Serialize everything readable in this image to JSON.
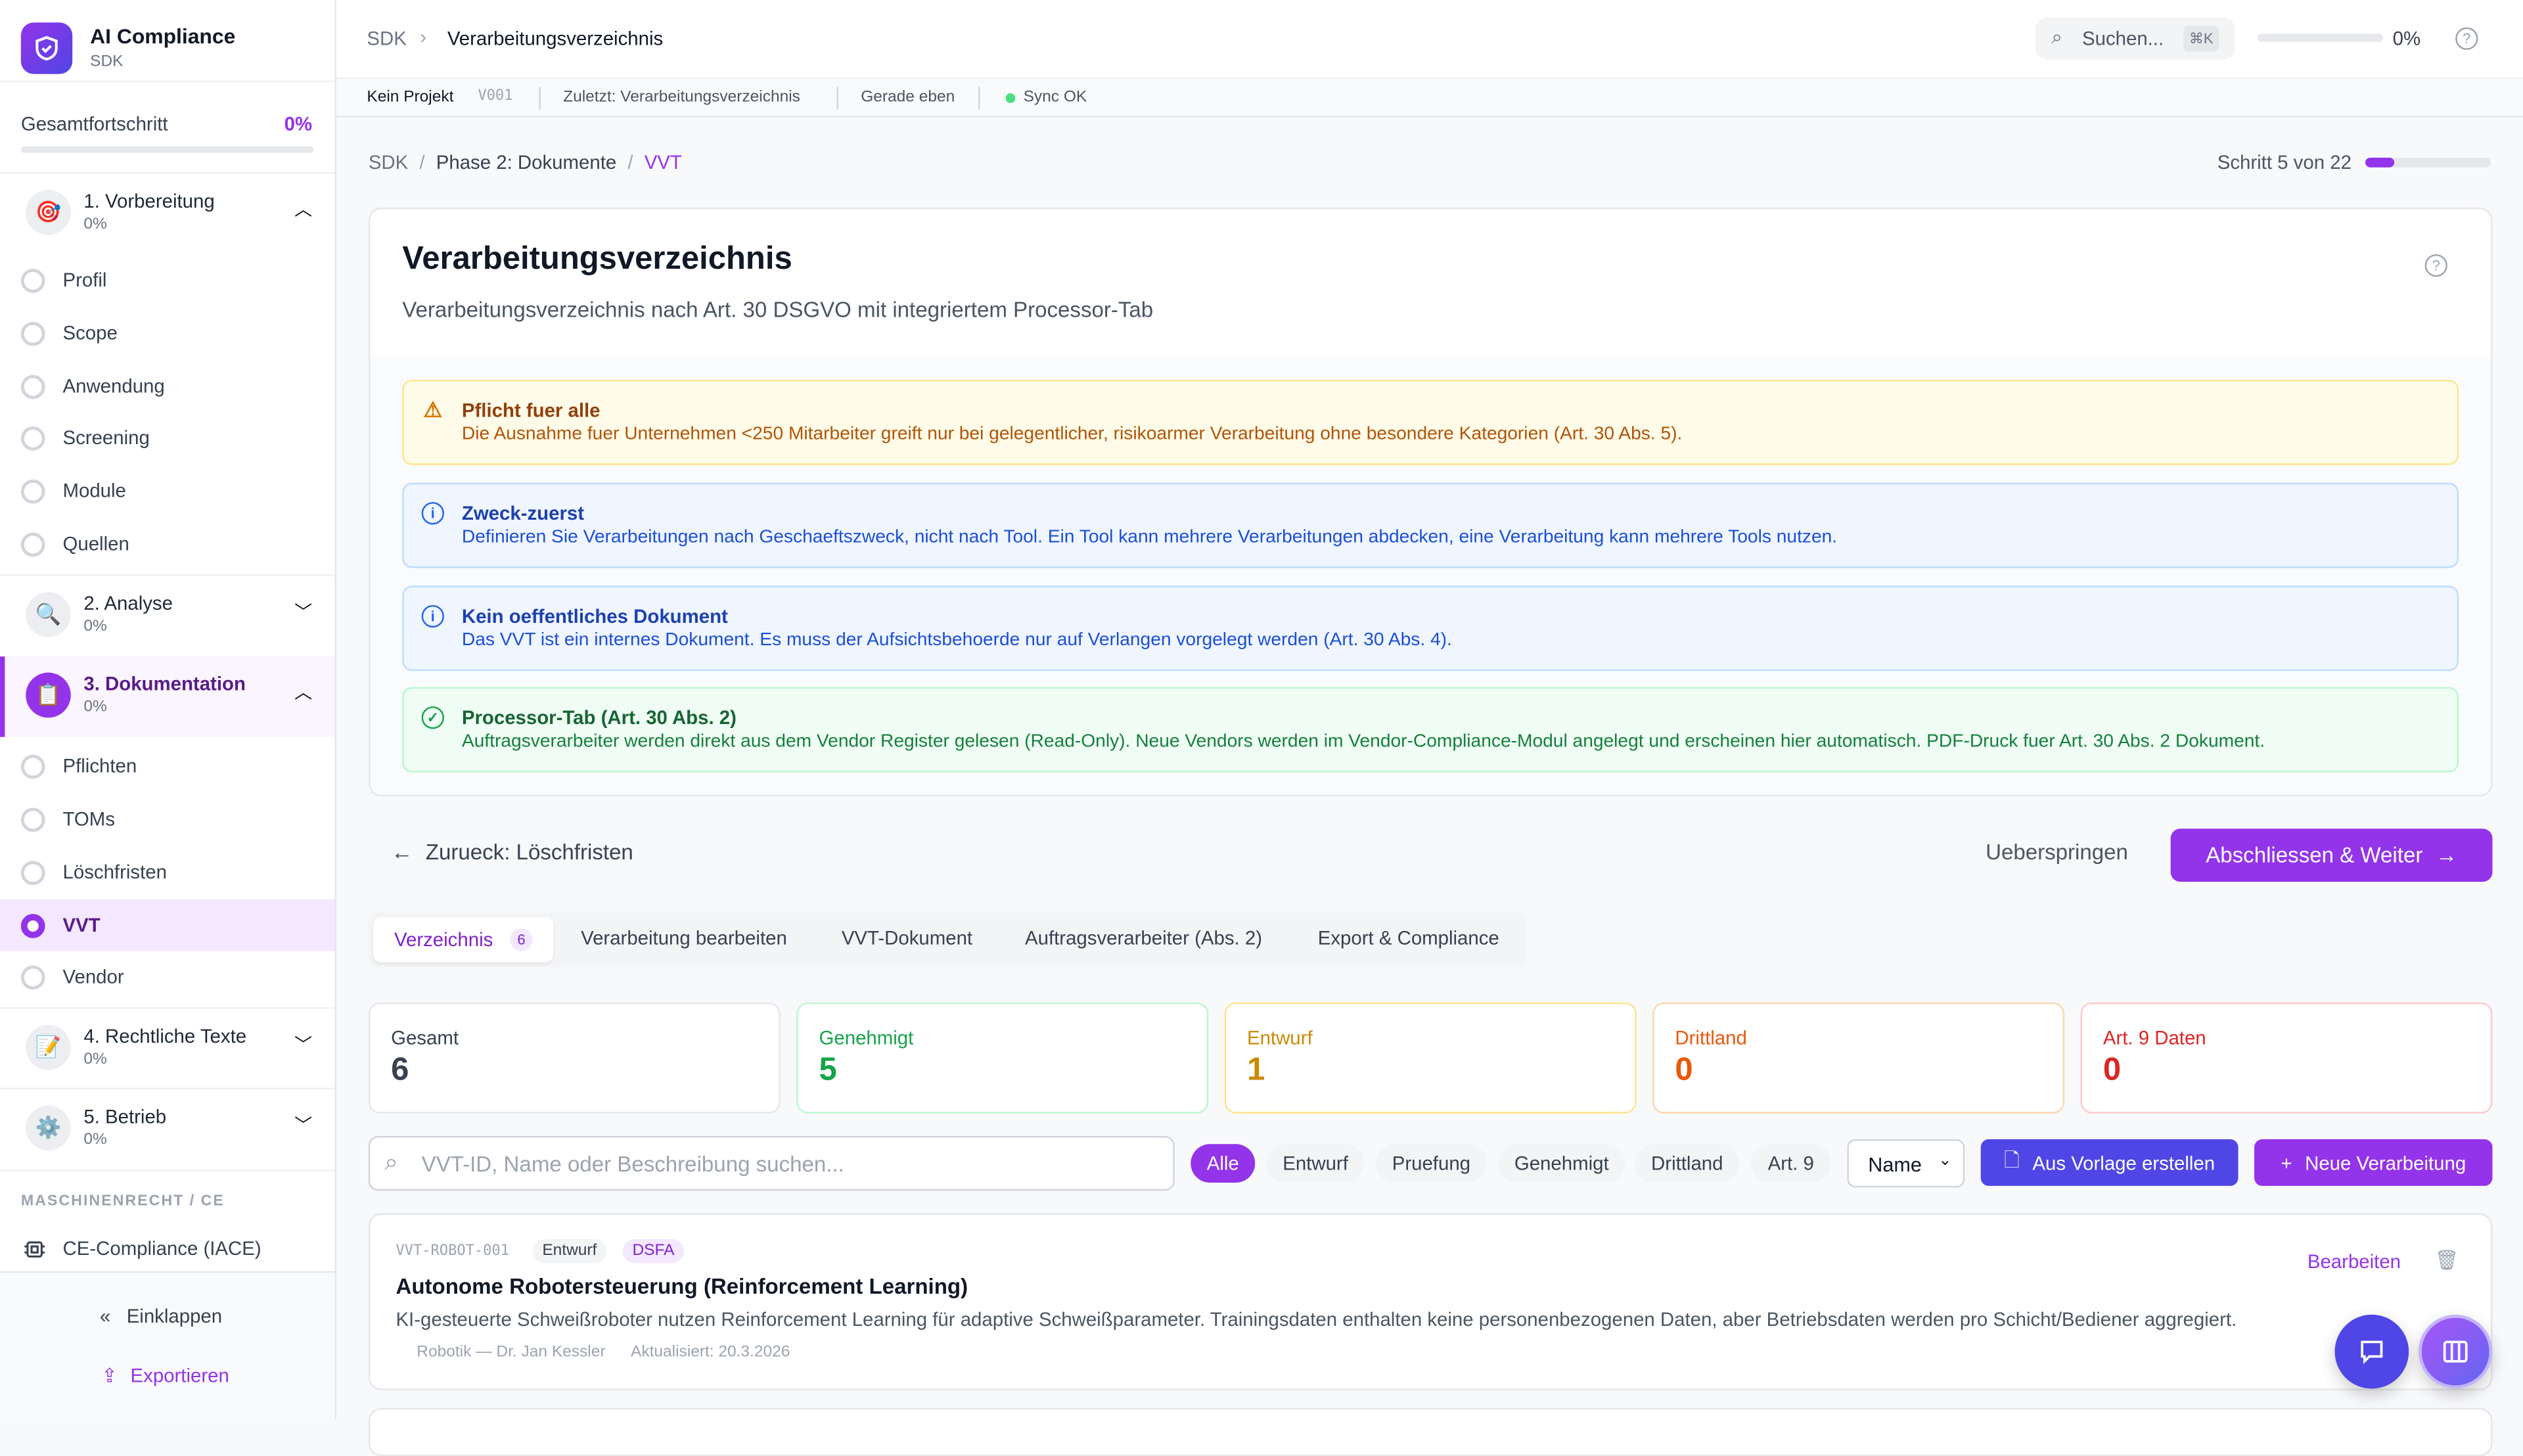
{
  "sidebar": {
    "brand": "AI Compliance",
    "brand_sub": "SDK",
    "progress_label": "Gesamtfortschritt",
    "progress_pct": "0%",
    "progress_value": 0,
    "sections": [
      {
        "title": "1. Vorbereitung",
        "pct": "0%",
        "icon": "target-icon",
        "expanded": true,
        "items": [
          "Profil",
          "Scope",
          "Anwendung",
          "Screening",
          "Module",
          "Quellen"
        ]
      },
      {
        "title": "2. Analyse",
        "pct": "0%",
        "icon": "magnifier-icon",
        "expanded": false
      },
      {
        "title": "3. Dokumentation",
        "pct": "0%",
        "icon": "clipboard-icon",
        "expanded": true,
        "active": true,
        "items": [
          "Pflichten",
          "TOMs",
          "Löschfristen",
          "VVT",
          "Vendor"
        ]
      },
      {
        "title": "4. Rechtliche Texte",
        "pct": "0%",
        "icon": "memo-icon",
        "expanded": false
      },
      {
        "title": "5. Betrieb",
        "pct": "0%",
        "icon": "gear-icon",
        "expanded": false
      }
    ],
    "group_label": "MASCHINENRECHT / CE",
    "ce_item": "CE-Compliance (IACE)",
    "collapse": "Einklappen",
    "export": "Exportieren"
  },
  "header": {
    "crumb_root": "SDK",
    "crumb_page": "Verarbeitungsverzeichnis",
    "search": "Suchen...",
    "shortcut": "⌘K",
    "progress_pct": "0%",
    "progress_value": 0
  },
  "subbar": {
    "project": "Kein Projekt",
    "version": "V001",
    "last": "Zuletzt: Verarbeitungsverzeichnis",
    "time": "Gerade eben",
    "sync": "Sync OK"
  },
  "breadcrumb": {
    "root": "SDK",
    "phase": "Phase 2: Dokumente",
    "current": "VVT",
    "step": "Schritt 5 von 22",
    "step_value": 5,
    "step_total": 22
  },
  "page": {
    "title": "Verarbeitungsverzeichnis",
    "subtitle": "Verarbeitungsverzeichnis nach Art. 30 DSGVO mit integriertem Processor-Tab"
  },
  "alerts": [
    {
      "title": "Pflicht fuer alle",
      "body": "Die Ausnahme fuer Unternehmen <250 Mitarbeiter greift nur bei gelegentlicher, risikoarmer Verarbeitung ohne besondere Kategorien (Art. 30 Abs. 5).",
      "type": "warning"
    },
    {
      "title": "Zweck-zuerst",
      "body": "Definieren Sie Verarbeitungen nach Geschaeftszweck, nicht nach Tool. Ein Tool kann mehrere Verarbeitungen abdecken, eine Verarbeitung kann mehrere Tools nutzen.",
      "type": "info"
    },
    {
      "title": "Kein oeffentliches Dokument",
      "body": "Das VVT ist ein internes Dokument. Es muss der Aufsichtsbehoerde nur auf Verlangen vorgelegt werden (Art. 30 Abs. 4).",
      "type": "info"
    },
    {
      "title": "Processor-Tab (Art. 30 Abs. 2)",
      "body": "Auftragsverarbeiter werden direkt aus dem Vendor Register gelesen (Read-Only). Neue Vendors werden im Vendor-Compliance-Modul angelegt und erscheinen hier automatisch. PDF-Druck fuer Art. 30 Abs. 2 Dokument.",
      "type": "success"
    }
  ],
  "nav": {
    "back": "Zurueck: Löschfristen",
    "skip": "Ueberspringen",
    "next": "Abschliessen & Weiter"
  },
  "tabs": [
    {
      "label": "Verzeichnis",
      "badge": "6"
    },
    {
      "label": "Verarbeitung bearbeiten"
    },
    {
      "label": "VVT-Dokument"
    },
    {
      "label": "Auftragsverarbeiter (Abs. 2)"
    },
    {
      "label": "Export & Compliance"
    }
  ],
  "stats": [
    {
      "label": "Gesamt",
      "value": "6",
      "color": "#374151"
    },
    {
      "label": "Genehmigt",
      "value": "5",
      "color": "#16a34a"
    },
    {
      "label": "Entwurf",
      "value": "1",
      "color": "#ca8a04"
    },
    {
      "label": "Drittland",
      "value": "0",
      "color": "#ea580c"
    },
    {
      "label": "Art. 9 Daten",
      "value": "0",
      "color": "#dc2626"
    }
  ],
  "filters": {
    "search_placeholder": "VVT-ID, Name oder Beschreibung suchen...",
    "chips": [
      "Alle",
      "Entwurf",
      "Pruefung",
      "Genehmigt",
      "Drittland",
      "Art. 9"
    ],
    "sort": "Name",
    "template_btn": "Aus Vorlage erstellen",
    "new_btn": "Neue Verarbeitung"
  },
  "records": [
    {
      "id": "VVT-ROBOT-001",
      "status": "Entwurf",
      "tag": "DSFA",
      "title": "Autonome Robotersteuerung (Reinforcement Learning)",
      "desc": "KI-gesteuerte Schweißroboter nutzen Reinforcement Learning für adaptive Schweißparameter. Trainingsdaten enthalten keine personenbezogenen Daten, aber Betriebsdaten werden pro Schicht/Bediener aggregiert.",
      "owner": "Robotik — Dr. Jan Kessler",
      "updated": "Aktualisiert: 20.3.2026",
      "edit": "Bearbeiten"
    }
  ],
  "colors": {
    "accent": "#9333ea",
    "indigo": "#4f46e5"
  }
}
